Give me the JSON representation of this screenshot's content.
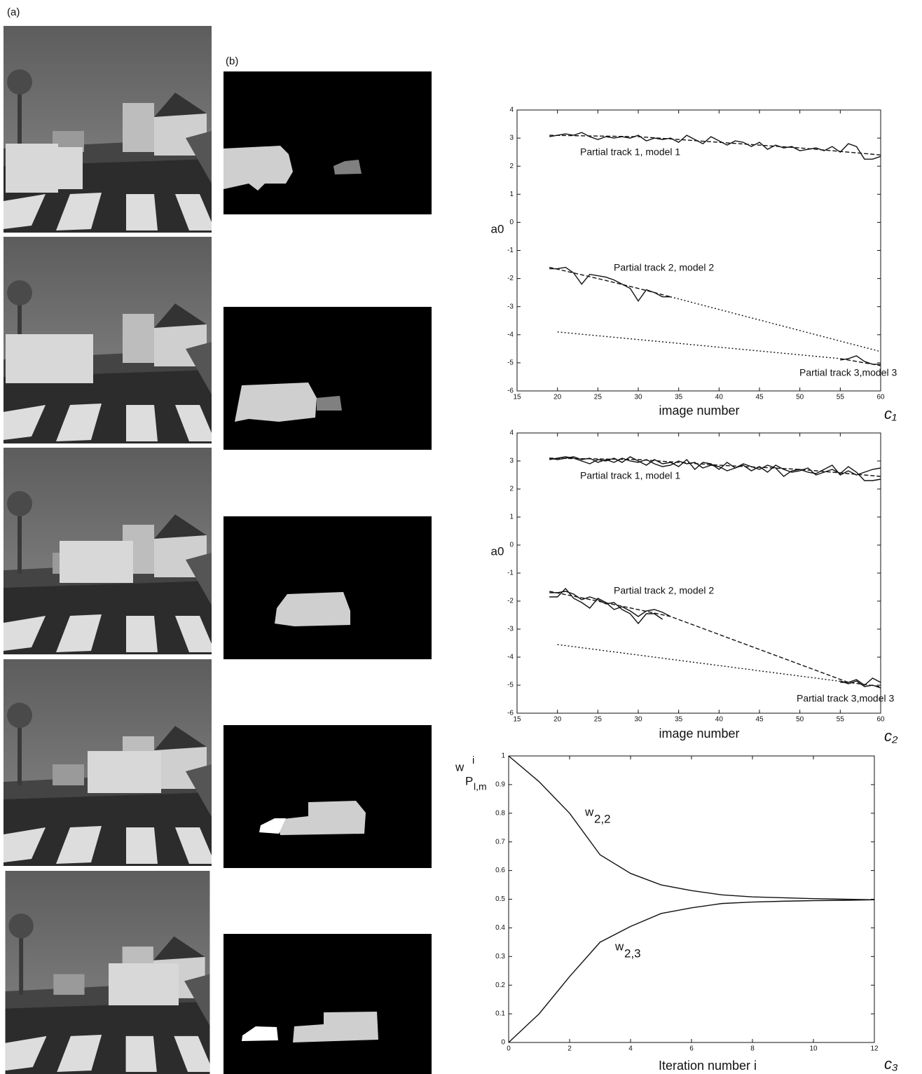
{
  "labels": {
    "a": "(a)",
    "b": "(b)"
  },
  "chart_data": [
    {
      "type": "line",
      "xlabel": "image number",
      "ylabel": "a0",
      "corner_label": "c₁",
      "xlim": [
        15,
        60
      ],
      "xticks": [
        15,
        20,
        25,
        30,
        35,
        40,
        45,
        50,
        55,
        60
      ],
      "ylim": [
        -6,
        4
      ],
      "yticks": [
        -6,
        -5,
        -4,
        -3,
        -2,
        -1,
        0,
        1,
        2,
        3,
        4
      ],
      "annotations": [
        "Partial track 1, model 1",
        "Partial track 2, model 2",
        "Partial track 3,model 3"
      ],
      "series": [
        {
          "color": "#111111",
          "style": "solid",
          "x": [
            19,
            20,
            21,
            22,
            23,
            24,
            25,
            26,
            27,
            28,
            29,
            30,
            31,
            32,
            33,
            34,
            35,
            36,
            37,
            38,
            39,
            40,
            41,
            42,
            43,
            44,
            45,
            46,
            47,
            48,
            49,
            50,
            51,
            52,
            53,
            54,
            55,
            56,
            57,
            58,
            59,
            60
          ],
          "values": [
            3.05,
            3.1,
            3.15,
            3.1,
            3.2,
            3.05,
            2.95,
            3.05,
            3.0,
            3.05,
            3.0,
            3.1,
            2.9,
            3.0,
            2.95,
            3.0,
            2.85,
            3.1,
            2.95,
            2.8,
            3.05,
            2.9,
            2.75,
            2.9,
            2.85,
            2.7,
            2.85,
            2.6,
            2.75,
            2.65,
            2.7,
            2.55,
            2.6,
            2.65,
            2.55,
            2.7,
            2.5,
            2.8,
            2.7,
            2.25,
            2.25,
            2.35
          ]
        },
        {
          "color": "#111111",
          "style": "dashed",
          "x": [
            19,
            30,
            40,
            50,
            58,
            60
          ],
          "values": [
            3.1,
            3.05,
            2.85,
            2.65,
            2.45,
            2.4
          ]
        },
        {
          "color": "#111111",
          "style": "solid",
          "x": [
            19,
            20,
            21,
            22,
            23,
            24,
            25,
            26,
            27,
            28,
            29,
            30,
            31,
            32,
            33,
            34
          ],
          "values": [
            -1.65,
            -1.65,
            -1.6,
            -1.8,
            -2.2,
            -1.85,
            -1.9,
            -1.95,
            -2.05,
            -2.2,
            -2.35,
            -2.8,
            -2.4,
            -2.5,
            -2.65,
            -2.65
          ]
        },
        {
          "color": "#111111",
          "style": "dashed",
          "x": [
            19,
            25,
            30,
            34
          ],
          "values": [
            -1.6,
            -2.0,
            -2.35,
            -2.65
          ]
        },
        {
          "color": "#111111",
          "style": "dotted",
          "x": [
            34,
            60
          ],
          "values": [
            -2.65,
            -4.6
          ]
        },
        {
          "color": "#111111",
          "style": "dotted",
          "x": [
            20,
            55
          ],
          "values": [
            -3.9,
            -4.85
          ]
        },
        {
          "color": "#111111",
          "style": "solid",
          "x": [
            55,
            56,
            57,
            58,
            59,
            60
          ],
          "values": [
            -4.9,
            -4.85,
            -4.75,
            -4.95,
            -5.05,
            -5.05
          ]
        },
        {
          "color": "#111111",
          "style": "dashed",
          "x": [
            55,
            60
          ],
          "values": [
            -4.85,
            -5.1
          ]
        }
      ]
    },
    {
      "type": "line",
      "xlabel": "image number",
      "ylabel": "a0",
      "corner_label": "c₂",
      "xlim": [
        15,
        60
      ],
      "xticks": [
        15,
        20,
        25,
        30,
        35,
        40,
        45,
        50,
        55,
        60
      ],
      "ylim": [
        -6,
        4
      ],
      "yticks": [
        -6,
        -5,
        -4,
        -3,
        -2,
        -1,
        0,
        1,
        2,
        3,
        4
      ],
      "annotations": [
        "Partial track 1, model 1",
        "Partial track 2, model 2",
        "Partial track 3,model 3"
      ],
      "series": [
        {
          "color": "#111111",
          "style": "solid",
          "x": [
            19,
            20,
            21,
            22,
            23,
            24,
            25,
            26,
            27,
            28,
            29,
            30,
            31,
            32,
            33,
            34,
            35,
            36,
            37,
            38,
            39,
            40,
            41,
            42,
            43,
            44,
            45,
            46,
            47,
            48,
            49,
            50,
            51,
            52,
            53,
            54,
            55,
            56,
            57,
            58,
            59,
            60
          ],
          "values": [
            3.05,
            3.1,
            3.15,
            3.1,
            3.0,
            2.9,
            3.05,
            3.0,
            3.1,
            2.95,
            3.15,
            3.0,
            2.85,
            3.05,
            2.9,
            2.95,
            2.8,
            3.05,
            2.7,
            2.95,
            2.9,
            2.7,
            2.95,
            2.75,
            2.85,
            2.65,
            2.8,
            2.6,
            2.85,
            2.7,
            2.6,
            2.65,
            2.75,
            2.5,
            2.6,
            2.7,
            2.55,
            2.8,
            2.6,
            2.3,
            2.3,
            2.35
          ]
        },
        {
          "color": "#111111",
          "style": "solid",
          "x": [
            19,
            20,
            21,
            22,
            23,
            24,
            25,
            26,
            27,
            28,
            29,
            30,
            31,
            32,
            33,
            34,
            35,
            36,
            37,
            38,
            39,
            40,
            41,
            42,
            43,
            44,
            45,
            46,
            47,
            48,
            49,
            50,
            51,
            52,
            53,
            54,
            55,
            56,
            57,
            58,
            59,
            60
          ],
          "values": [
            3.1,
            3.05,
            3.1,
            3.15,
            3.05,
            3.1,
            2.95,
            3.05,
            2.95,
            3.1,
            3.0,
            2.95,
            3.05,
            2.9,
            2.8,
            2.85,
            3.0,
            2.9,
            2.95,
            2.75,
            2.85,
            2.8,
            2.65,
            2.75,
            2.9,
            2.8,
            2.7,
            2.85,
            2.75,
            2.45,
            2.65,
            2.7,
            2.6,
            2.55,
            2.7,
            2.85,
            2.5,
            2.65,
            2.5,
            2.6,
            2.7,
            2.75
          ]
        },
        {
          "color": "#111111",
          "style": "dashed",
          "x": [
            19,
            30,
            40,
            50,
            58,
            60
          ],
          "values": [
            3.1,
            3.05,
            2.85,
            2.7,
            2.5,
            2.45
          ]
        },
        {
          "color": "#111111",
          "style": "solid",
          "x": [
            19,
            20,
            21,
            22,
            23,
            24,
            25,
            26,
            27,
            28,
            29,
            30,
            31,
            32,
            33,
            34
          ],
          "values": [
            -1.85,
            -1.85,
            -1.55,
            -1.9,
            -2.05,
            -2.25,
            -1.9,
            -2.05,
            -2.3,
            -2.2,
            -2.35,
            -2.55,
            -2.35,
            -2.3,
            -2.4,
            -2.55
          ]
        },
        {
          "color": "#111111",
          "style": "solid",
          "x": [
            19,
            20,
            21,
            22,
            23,
            24,
            25,
            26,
            27,
            28,
            29,
            30,
            31,
            32,
            33
          ],
          "values": [
            -1.7,
            -1.7,
            -1.65,
            -1.75,
            -1.95,
            -1.85,
            -1.95,
            -2.1,
            -2.05,
            -2.3,
            -2.45,
            -2.8,
            -2.45,
            -2.45,
            -2.65
          ]
        },
        {
          "color": "#111111",
          "style": "dashed",
          "x": [
            19,
            25,
            34,
            56,
            60
          ],
          "values": [
            -1.65,
            -2.0,
            -2.55,
            -4.9,
            -5.05
          ]
        },
        {
          "color": "#111111",
          "style": "dotted",
          "x": [
            20,
            56
          ],
          "values": [
            -3.55,
            -4.9
          ]
        },
        {
          "color": "#111111",
          "style": "solid",
          "x": [
            55,
            56,
            57,
            58,
            59,
            60
          ],
          "values": [
            -4.9,
            -4.9,
            -4.8,
            -5.0,
            -4.75,
            -4.9
          ]
        },
        {
          "color": "#111111",
          "style": "solid",
          "x": [
            55,
            56,
            57,
            58,
            59,
            60
          ],
          "values": [
            -4.85,
            -4.95,
            -4.85,
            -5.05,
            -5.0,
            -5.1
          ]
        }
      ]
    },
    {
      "type": "line",
      "xlabel": "Iteration number i",
      "ylabel": {
        "main": "w",
        "sup": "i",
        "second": "P",
        "sub": "l,m"
      },
      "corner_label": "c₃",
      "xlim": [
        0,
        12
      ],
      "xticks": [
        0,
        2,
        4,
        6,
        8,
        10,
        12
      ],
      "ylim": [
        0,
        1
      ],
      "yticks": [
        0,
        0.1,
        0.2,
        0.3,
        0.4,
        0.5,
        0.6,
        0.7,
        0.8,
        0.9,
        1
      ],
      "annotations": [
        {
          "text": "w",
          "sub": "2,2"
        },
        {
          "text": "w",
          "sub": "2,3"
        }
      ],
      "series": [
        {
          "color": "#111111",
          "style": "solid",
          "x": [
            0,
            1,
            2,
            3,
            4,
            5,
            6,
            7,
            8,
            9,
            10,
            11,
            12
          ],
          "values": [
            1,
            0.91,
            0.8,
            0.655,
            0.59,
            0.55,
            0.53,
            0.515,
            0.508,
            0.505,
            0.502,
            0.5,
            0.498
          ]
        },
        {
          "color": "#111111",
          "style": "solid",
          "x": [
            0,
            1,
            2,
            3,
            4,
            5,
            6,
            7,
            8,
            9,
            10,
            11,
            12
          ],
          "values": [
            0,
            0.1,
            0.23,
            0.35,
            0.405,
            0.45,
            0.47,
            0.485,
            0.49,
            0.493,
            0.495,
            0.496,
            0.498
          ]
        }
      ]
    }
  ]
}
